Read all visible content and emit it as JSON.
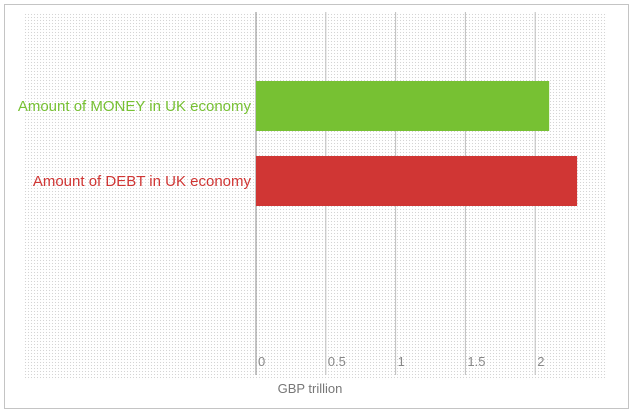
{
  "chart_data": {
    "type": "bar",
    "orientation": "horizontal",
    "title": "",
    "xlabel": "GBP trillion",
    "ylabel": "",
    "xlim": [
      0,
      2.5
    ],
    "x_ticks": [
      "0",
      "0.5",
      "1",
      "1.5",
      "2"
    ],
    "grid": true,
    "legend": "none",
    "categories": [
      "Amount of MONEY in UK economy",
      "Amount of DEBT in UK economy"
    ],
    "values": [
      2.1,
      2.3
    ],
    "colors": [
      "#77c133",
      "#d03634"
    ]
  }
}
